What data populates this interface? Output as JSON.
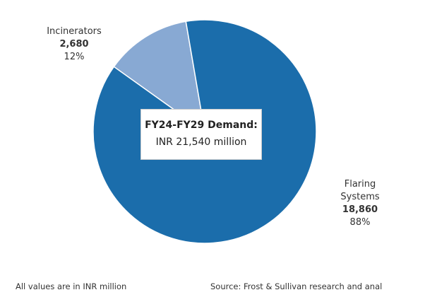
{
  "chart_data": {
    "type": "pie",
    "annotations": [
      "FY24-FY29 Demand:",
      "INR 21,540 million"
    ],
    "categories": [
      "Incinerators",
      "Flaring Systems"
    ],
    "values": [
      2680,
      18860
    ],
    "value_labels": [
      "2,680",
      "18,860"
    ],
    "percentages": [
      12,
      88
    ],
    "percentage_labels": [
      "12%",
      "88%"
    ],
    "colors": [
      "#88a9d3",
      "#1b6dab"
    ],
    "footnote": "All values are in INR million",
    "source": "Source: Frost & Sullivan research and anal"
  }
}
